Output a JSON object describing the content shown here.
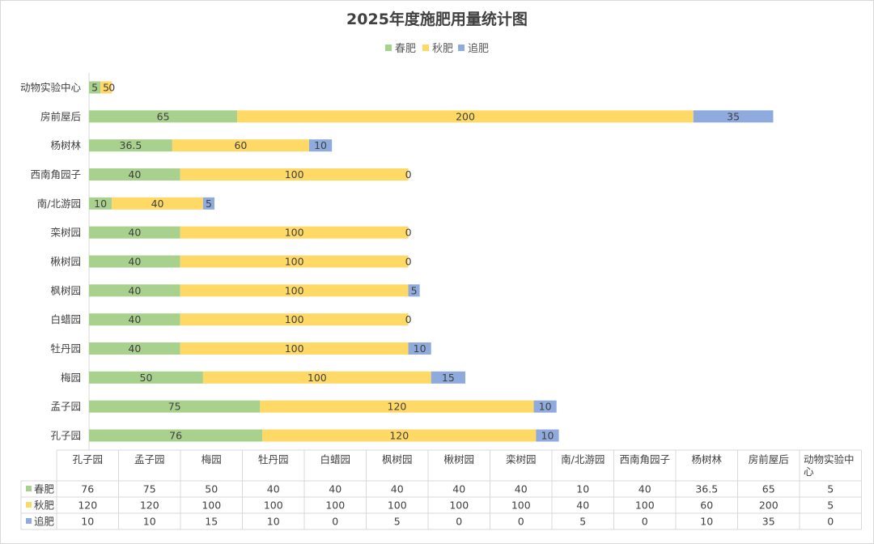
{
  "chart_data": {
    "type": "bar",
    "orientation": "horizontal",
    "stacked": true,
    "title": "2025年度施肥用量统计图",
    "legend_position": "top",
    "categories": [
      "孔子园",
      "孟子园",
      "梅园",
      "牡丹园",
      "白蜡园",
      "枫树园",
      "楸树园",
      "栾树园",
      "南/北游园",
      "西南角园子",
      "杨树林",
      "房前屋后",
      "动物实验中心"
    ],
    "series": [
      {
        "name": "春肥",
        "color": "#a9d18e",
        "values": [
          76,
          75,
          50,
          40,
          40,
          40,
          40,
          40,
          10,
          40,
          36.5,
          65,
          5
        ]
      },
      {
        "name": "秋肥",
        "color": "#ffd966",
        "values": [
          120,
          120,
          100,
          100,
          100,
          100,
          100,
          100,
          40,
          100,
          60,
          200,
          5
        ]
      },
      {
        "name": "追肥",
        "color": "#8faadc",
        "values": [
          10,
          10,
          15,
          10,
          0,
          5,
          0,
          0,
          5,
          0,
          10,
          35,
          0
        ]
      }
    ],
    "xlim": [
      0,
      330
    ],
    "grid": false,
    "data_table": true
  }
}
